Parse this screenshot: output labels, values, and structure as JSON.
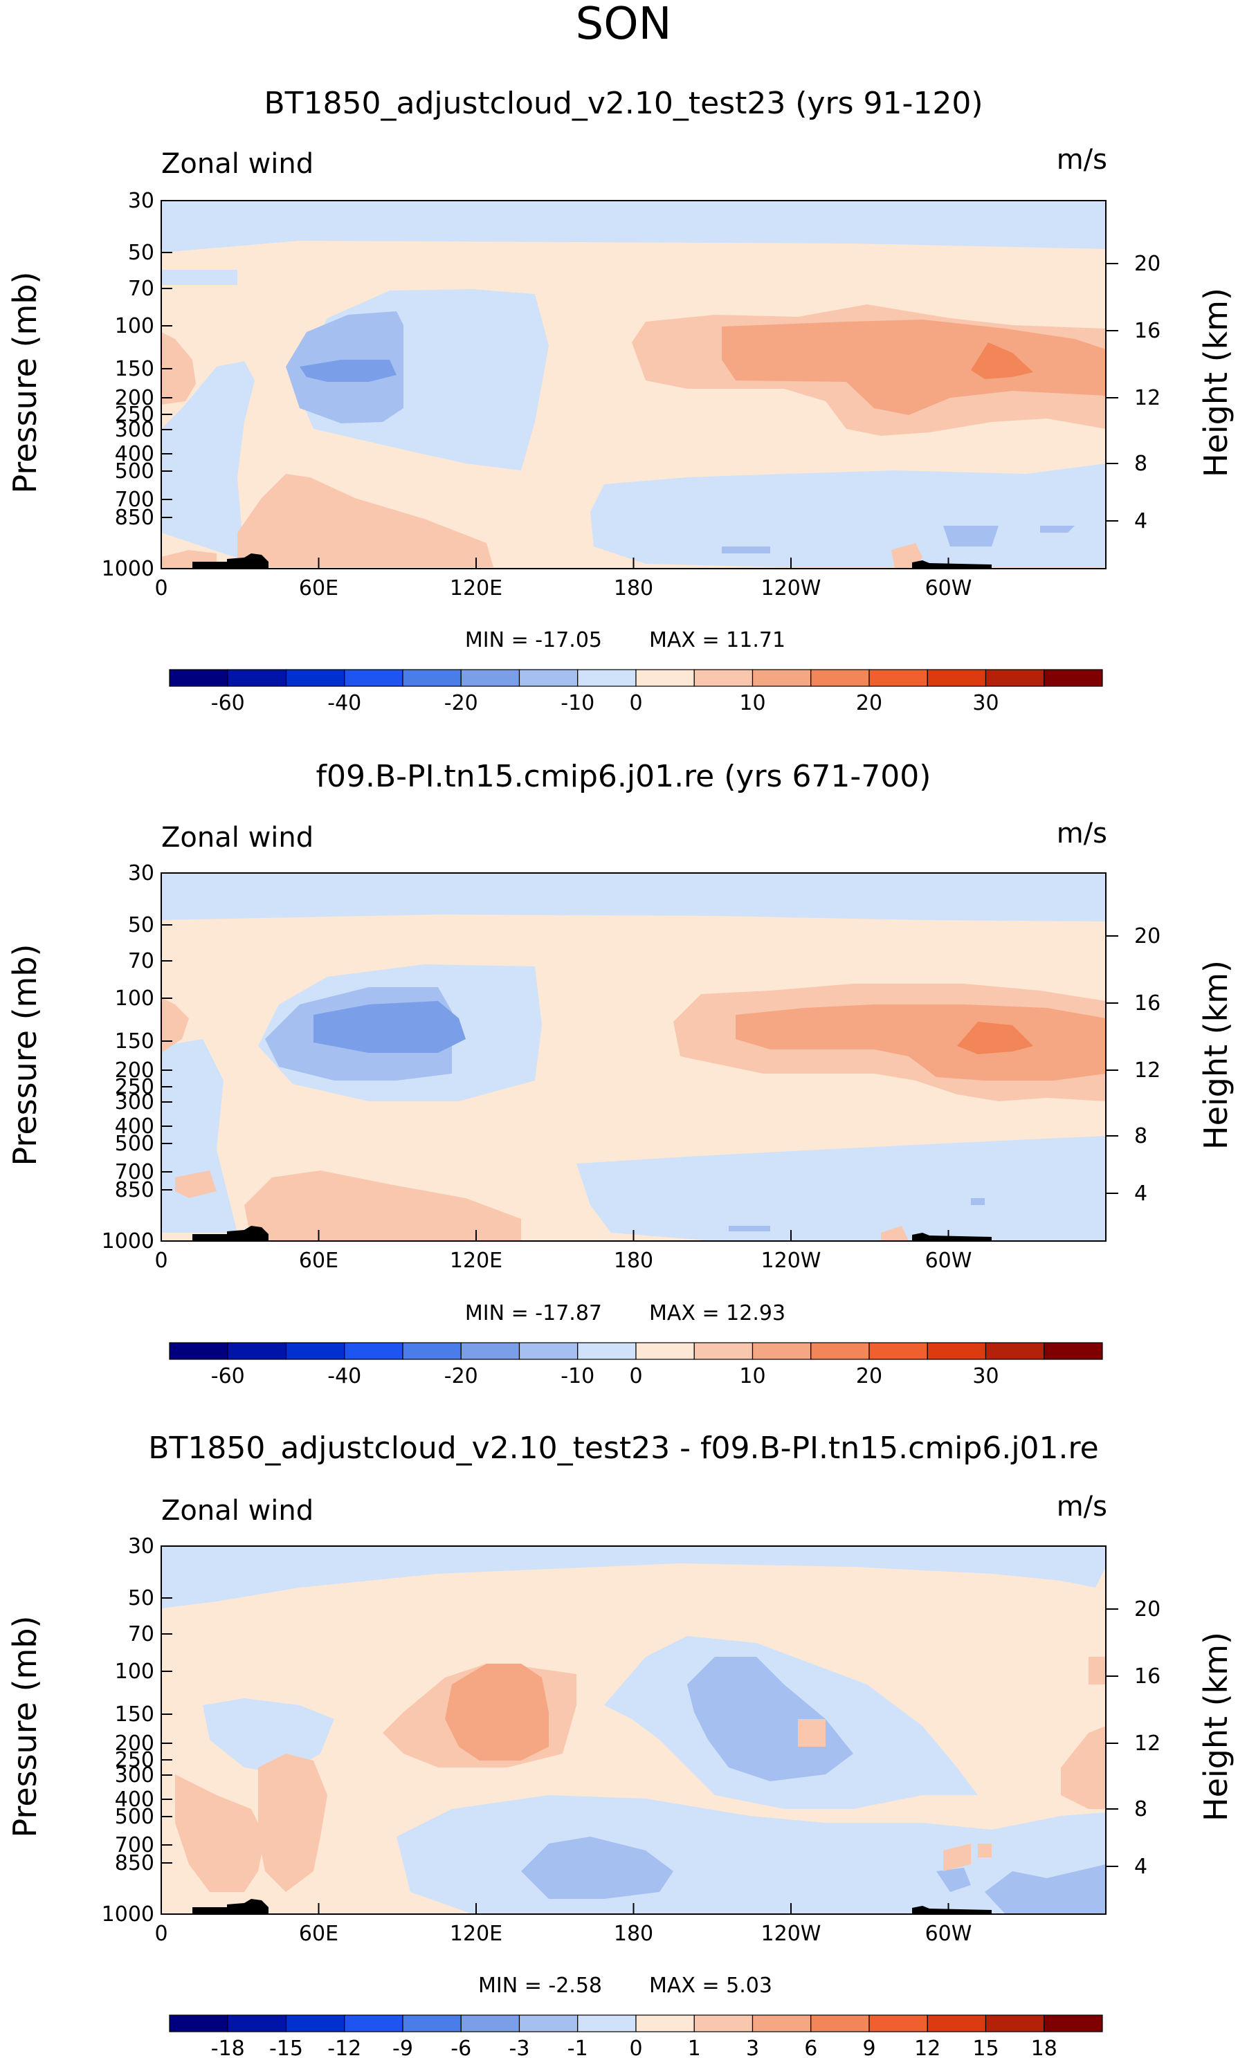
{
  "season": "SON",
  "chart_data": [
    {
      "type": "contour",
      "title": "BT1850_adjustcloud_v2.10_test23 (yrs 91-120)",
      "variable": "Zonal wind",
      "units": "m/s",
      "ylabel": "Pressure (mb)",
      "ylabel_right": "Height (km)",
      "x_ticks": [
        "0",
        "60E",
        "120E",
        "180",
        "120W",
        "60W"
      ],
      "y_ticks": [
        "30",
        "50",
        "70",
        "100",
        "150",
        "200",
        "250",
        "300",
        "400",
        "500",
        "700",
        "850",
        "1000"
      ],
      "height_ticks": [
        "20",
        "16",
        "12",
        "8",
        "4"
      ],
      "min_label": "MIN = -17.05",
      "max_label": "MAX = 11.71",
      "min": -17.05,
      "max": 11.71,
      "colorbar_labels": [
        "-60",
        "-40",
        "-20",
        "-10",
        "0",
        "10",
        "20",
        "30"
      ],
      "colorbar_colors": [
        "#00007f",
        "#0014a8",
        "#0030d0",
        "#1e55f0",
        "#4a7de8",
        "#7a9ee8",
        "#a4bff0",
        "#cfe2fa",
        "#fde8d6",
        "#f9c7ad",
        "#f5a683",
        "#f28659",
        "#f0602f",
        "#db3b0e",
        "#b32108",
        "#7f0000"
      ]
    },
    {
      "type": "contour",
      "title": "f09.B-PI.tn15.cmip6.j01.re (yrs 671-700)",
      "variable": "Zonal wind",
      "units": "m/s",
      "ylabel": "Pressure (mb)",
      "ylabel_right": "Height (km)",
      "x_ticks": [
        "0",
        "60E",
        "120E",
        "180",
        "120W",
        "60W"
      ],
      "y_ticks": [
        "30",
        "50",
        "70",
        "100",
        "150",
        "200",
        "250",
        "300",
        "400",
        "500",
        "700",
        "850",
        "1000"
      ],
      "height_ticks": [
        "20",
        "16",
        "12",
        "8",
        "4"
      ],
      "min_label": "MIN = -17.87",
      "max_label": "MAX = 12.93",
      "min": -17.87,
      "max": 12.93,
      "colorbar_labels": [
        "-60",
        "-40",
        "-20",
        "-10",
        "0",
        "10",
        "20",
        "30"
      ],
      "colorbar_colors": [
        "#00007f",
        "#0014a8",
        "#0030d0",
        "#1e55f0",
        "#4a7de8",
        "#7a9ee8",
        "#a4bff0",
        "#cfe2fa",
        "#fde8d6",
        "#f9c7ad",
        "#f5a683",
        "#f28659",
        "#f0602f",
        "#db3b0e",
        "#b32108",
        "#7f0000"
      ]
    },
    {
      "type": "contour",
      "title": "BT1850_adjustcloud_v2.10_test23 - f09.B-PI.tn15.cmip6.j01.re",
      "variable": "Zonal wind",
      "units": "m/s",
      "ylabel": "Pressure (mb)",
      "ylabel_right": "Height (km)",
      "x_ticks": [
        "0",
        "60E",
        "120E",
        "180",
        "120W",
        "60W"
      ],
      "y_ticks": [
        "30",
        "50",
        "70",
        "100",
        "150",
        "200",
        "250",
        "300",
        "400",
        "500",
        "700",
        "850",
        "1000"
      ],
      "height_ticks": [
        "20",
        "16",
        "12",
        "8",
        "4"
      ],
      "min_label": "MIN = -2.58",
      "max_label": "MAX = 5.03",
      "min": -2.58,
      "max": 5.03,
      "colorbar_labels": [
        "-18",
        "-15",
        "-12",
        "-9",
        "-6",
        "-3",
        "-1",
        "0",
        "1",
        "3",
        "6",
        "9",
        "12",
        "15",
        "18"
      ],
      "colorbar_colors": [
        "#00007f",
        "#0014a8",
        "#0030d0",
        "#1e55f0",
        "#4a7de8",
        "#7a9ee8",
        "#a4bff0",
        "#cfe2fa",
        "#fde8d6",
        "#f9c7ad",
        "#f5a683",
        "#f28659",
        "#f0602f",
        "#db3b0e",
        "#b32108",
        "#7f0000"
      ]
    }
  ]
}
